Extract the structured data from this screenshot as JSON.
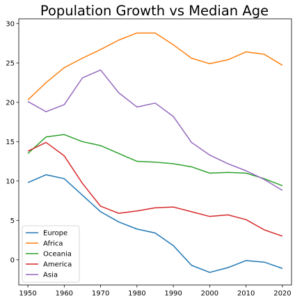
{
  "chart_data": {
    "type": "line",
    "title": "Population Growth vs Median Age",
    "xlabel": "",
    "ylabel": "",
    "x": [
      1950,
      1955,
      1960,
      1965,
      1970,
      1975,
      1980,
      1985,
      1990,
      1995,
      2000,
      2005,
      2010,
      2015,
      2020
    ],
    "xlim": [
      1947.5,
      2022.5
    ],
    "ylim": [
      -3.2,
      30.6
    ],
    "xticks": [
      1950,
      1960,
      1970,
      1980,
      1990,
      2000,
      2010,
      2020
    ],
    "yticks": [
      0,
      5,
      10,
      15,
      20,
      25,
      30
    ],
    "grid": false,
    "legend_position": "lower-left",
    "series": [
      {
        "name": "Europe",
        "color": "#1f77b4",
        "values": [
          9.8,
          10.8,
          10.3,
          8.2,
          6.1,
          4.8,
          3.9,
          3.4,
          1.8,
          -0.7,
          -1.6,
          -1.0,
          -0.1,
          -0.3,
          -1.1
        ]
      },
      {
        "name": "Africa",
        "color": "#ff7f0e",
        "values": [
          20.3,
          22.5,
          24.4,
          25.6,
          26.7,
          27.9,
          28.8,
          28.8,
          27.3,
          25.6,
          24.9,
          25.4,
          26.4,
          26.1,
          24.7
        ]
      },
      {
        "name": "Oceania",
        "color": "#2ca02c",
        "values": [
          13.5,
          15.6,
          15.9,
          15.0,
          14.5,
          13.5,
          12.5,
          12.4,
          12.2,
          11.8,
          11.0,
          11.1,
          11.0,
          10.3,
          9.4
        ]
      },
      {
        "name": "America",
        "color": "#d62728",
        "values": [
          13.8,
          14.9,
          13.2,
          9.7,
          6.8,
          5.9,
          6.2,
          6.6,
          6.7,
          6.1,
          5.5,
          5.7,
          5.1,
          3.8,
          3.0
        ]
      },
      {
        "name": "Asia",
        "color": "#9467bd",
        "values": [
          20.1,
          18.8,
          19.7,
          23.1,
          24.1,
          21.2,
          19.4,
          19.9,
          18.2,
          14.9,
          13.3,
          12.2,
          11.3,
          10.2,
          8.8
        ]
      }
    ]
  }
}
